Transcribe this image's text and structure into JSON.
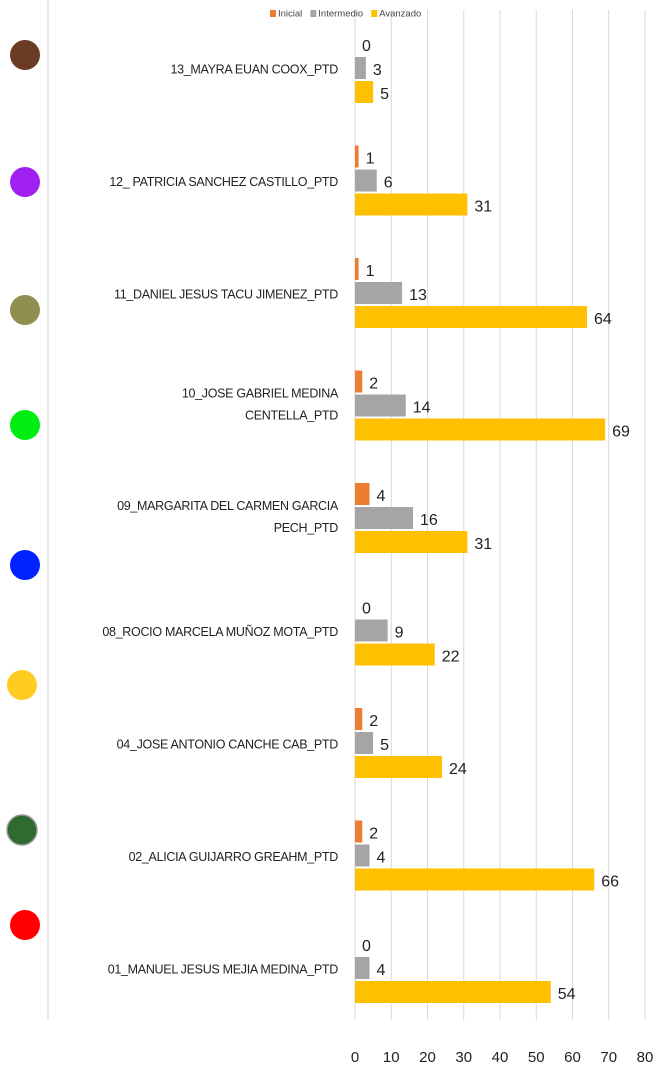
{
  "chart_data": {
    "type": "bar",
    "orientation": "horizontal",
    "categories": [
      "13_MAYRA EUAN COOX_PTD",
      "12_ PATRICIA SANCHEZ CASTILLO_PTD",
      "11_DANIEL JESUS TACU JIMENEZ_PTD",
      "10_JOSE GABRIEL MEDINA CENTELLA_PTD",
      "09_MARGARITA DEL CARMEN GARCIA PECH_PTD",
      "08_ROCIO MARCELA MUÑOZ MOTA_PTD",
      "04_JOSE ANTONIO CANCHE CAB_PTD",
      "02_ALICIA GUIJARRO GREAHM_PTD",
      "01_MANUEL JESUS MEJIA MEDINA_PTD"
    ],
    "series": [
      {
        "name": "Inicial",
        "color": "#ed7d31",
        "values": [
          0,
          1,
          1,
          2,
          4,
          0,
          2,
          2,
          0
        ]
      },
      {
        "name": "Intermedio",
        "color": "#a5a5a5",
        "values": [
          3,
          6,
          13,
          14,
          16,
          9,
          5,
          4,
          4
        ]
      },
      {
        "name": "Avanzado",
        "color": "#ffc000",
        "values": [
          5,
          31,
          64,
          69,
          31,
          22,
          24,
          66,
          54
        ]
      }
    ],
    "xlim": [
      0,
      80
    ],
    "xticks": [
      0,
      10,
      20,
      30,
      40,
      50,
      60,
      70,
      80
    ],
    "grid": true,
    "legend": "top"
  }
}
